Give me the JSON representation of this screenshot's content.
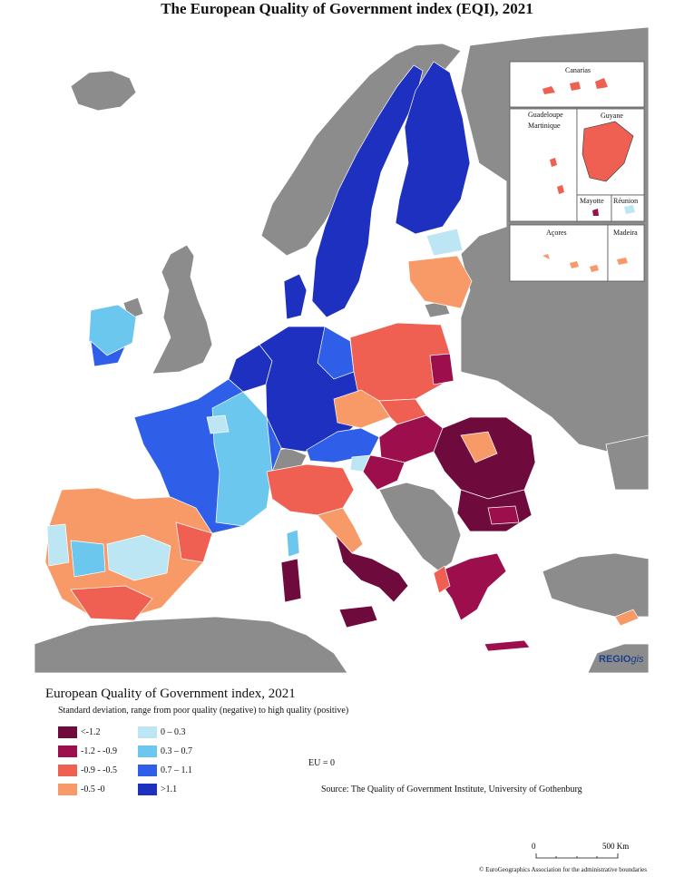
{
  "title": "The European Quality of Government index (EQI), 2021",
  "map": {
    "colors": {
      "sea": "#ffffff",
      "non_eu": "#8c8c8c",
      "lt_m12": "#6e0a3c",
      "m12_m09": "#9c0f4c",
      "m09_m05": "#ef5f52",
      "m05_0": "#f89a67",
      "p0_03": "#bde6f5",
      "p03_07": "#6cc7ee",
      "p07_11": "#2f5fe8",
      "gt11": "#1e30c0"
    },
    "insets": {
      "canarias": "Canarias",
      "guadeloupe": "Guadeloupe",
      "martinique": "Martinique",
      "guyane": "Guyane",
      "mayotte": "Mayotte",
      "reunion": "Réunion",
      "acores": "Açores",
      "madeira": "Madeira"
    },
    "logo_main": "REGIO",
    "logo_sub": "gis"
  },
  "legend": {
    "title": "European Quality of Government index, 2021",
    "subtitle": "Standard deviation, range from poor quality (negative) to high quality (positive)",
    "items": [
      {
        "label": "<-1.2",
        "color": "#6e0a3c"
      },
      {
        "label": "-1.2 - -0.9",
        "color": "#9c0f4c"
      },
      {
        "label": "-0.9 - -0.5",
        "color": "#ef5f52"
      },
      {
        "label": "-0.5 -0",
        "color": "#f89a67"
      },
      {
        "label": "0 – 0.3",
        "color": "#bde6f5"
      },
      {
        "label": "0.3 – 0.7",
        "color": "#6cc7ee"
      },
      {
        "label": "0.7 – 1.1",
        "color": "#2f5fe8"
      },
      {
        "label": ">1.1",
        "color": "#1e30c0"
      }
    ]
  },
  "eu_note": "EU = 0",
  "source": "Source: The Quality of Government Institute, University of Gothenburg",
  "scale": {
    "zero": "0",
    "end": "500 Km"
  },
  "copyright": "© EuroGeographics Association for the administrative boundaries"
}
